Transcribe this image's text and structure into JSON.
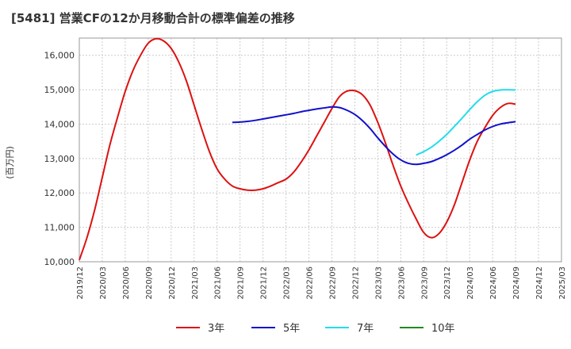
{
  "chart_data": {
    "type": "line",
    "title": "[5481]  営業CFの12か月移動合計の標準偏差の推移",
    "ylabel": "(百万円)",
    "xlabel": "",
    "ylim": [
      10000,
      16500
    ],
    "yticks": [
      10000,
      11000,
      12000,
      13000,
      14000,
      15000,
      16000
    ],
    "ytick_labels": [
      "10,000",
      "11,000",
      "12,000",
      "13,000",
      "14,000",
      "15,000",
      "16,000"
    ],
    "x_start": "2019/12",
    "x_count": 64,
    "xtick_labels": [
      "2019/12",
      "2020/03",
      "2020/06",
      "2020/09",
      "2020/12",
      "2021/03",
      "2021/06",
      "2021/09",
      "2021/12",
      "2022/03",
      "2022/06",
      "2022/09",
      "2022/12",
      "2023/03",
      "2023/06",
      "2023/09",
      "2023/12",
      "2024/03",
      "2024/06",
      "2024/09",
      "2024/12",
      "2025/03"
    ],
    "grid": true,
    "legend_position": "bottom",
    "series": [
      {
        "name": "3年",
        "color": "#dd1111",
        "start": "2019/12",
        "values": [
          10050,
          10700,
          11500,
          12450,
          13400,
          14200,
          14950,
          15550,
          16000,
          16350,
          16480,
          16420,
          16200,
          15800,
          15250,
          14550,
          13850,
          13200,
          12700,
          12400,
          12200,
          12120,
          12080,
          12080,
          12120,
          12200,
          12300,
          12400,
          12600,
          12900,
          13250,
          13650,
          14050,
          14450,
          14800,
          14960,
          14970,
          14850,
          14550,
          14050,
          13450,
          12800,
          12200,
          11700,
          11250,
          10850,
          10700,
          10820,
          11150,
          11650,
          12300,
          12950,
          13500,
          13900,
          14250,
          14480,
          14600,
          14580
        ]
      },
      {
        "name": "5年",
        "color": "#1111cc",
        "start": "2021/08",
        "values": [
          14050,
          14060,
          14080,
          14110,
          14150,
          14190,
          14230,
          14270,
          14310,
          14360,
          14400,
          14440,
          14470,
          14500,
          14480,
          14400,
          14280,
          14100,
          13870,
          13600,
          13350,
          13130,
          12960,
          12860,
          12830,
          12860,
          12910,
          13000,
          13110,
          13240,
          13390,
          13560,
          13700,
          13830,
          13930,
          14000,
          14040,
          14070
        ]
      },
      {
        "name": "7年",
        "color": "#22ddee",
        "start": "2023/08",
        "values": [
          13100,
          13200,
          13330,
          13500,
          13700,
          13930,
          14170,
          14420,
          14650,
          14840,
          14950,
          14990,
          15000,
          14990
        ]
      },
      {
        "name": "10年",
        "color": "#228822",
        "start": "2024/09",
        "values": []
      }
    ]
  }
}
